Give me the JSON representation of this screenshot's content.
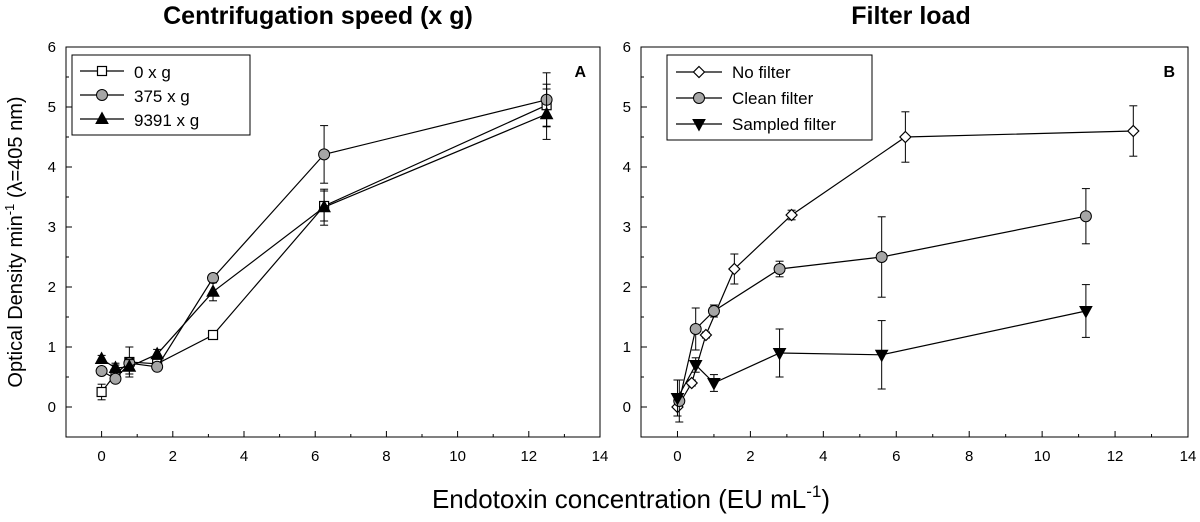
{
  "x_axis_label": "Endotoxin concentration (EU mL",
  "x_axis_label_sup": "-1",
  "x_axis_label_end": ")",
  "y_axis_label": {
    "pre": "Optical Density min",
    "sup": "-1",
    "mid": " (",
    "lambda": "λ",
    "post": "=405 nm)"
  },
  "chart_data": [
    {
      "type": "line",
      "panel": "A",
      "title": "Centrifugation speed (x g)",
      "xlim": [
        -1,
        14
      ],
      "ylim": [
        -0.5,
        6
      ],
      "xticks": [
        "0",
        "2",
        "4",
        "6",
        "8",
        "10",
        "12",
        "14"
      ],
      "yticks": [
        "0",
        "1",
        "2",
        "3",
        "4",
        "5",
        "6"
      ],
      "legend_position": "top-left",
      "series": [
        {
          "name": "0 x g",
          "marker": "square-open",
          "x": [
            0,
            0.39,
            0.78,
            1.56,
            3.13,
            6.25,
            12.5
          ],
          "y": [
            0.25,
            0.55,
            0.75,
            0.72,
            1.2,
            3.35,
            5.03
          ],
          "err": [
            0.13,
            0.15,
            0.25,
            0.12,
            0.02,
            0.25,
            0.35
          ]
        },
        {
          "name": "375 x g",
          "marker": "circle-gray",
          "x": [
            0,
            0.39,
            0.78,
            1.56,
            3.13,
            6.25,
            12.5
          ],
          "y": [
            0.6,
            0.47,
            0.73,
            0.67,
            2.15,
            4.21,
            5.12
          ],
          "err": [
            0.05,
            0.05,
            0.08,
            0.05,
            0.03,
            0.48,
            0.45
          ]
        },
        {
          "name": "9391 x g",
          "marker": "triangle-up-filled",
          "x": [
            0,
            0.39,
            0.78,
            1.56,
            3.13,
            6.25,
            12.5
          ],
          "y": [
            0.8,
            0.65,
            0.67,
            0.88,
            1.92,
            3.33,
            4.88
          ],
          "err": [
            0.06,
            0.08,
            0.12,
            0.08,
            0.15,
            0.3,
            0.42
          ]
        }
      ]
    },
    {
      "type": "line",
      "panel": "B",
      "title": "Filter load",
      "xlim": [
        -1,
        14
      ],
      "ylim": [
        -0.5,
        6
      ],
      "xticks": [
        "0",
        "2",
        "4",
        "6",
        "8",
        "10",
        "12",
        "14"
      ],
      "yticks": [
        "0",
        "1",
        "2",
        "3",
        "4",
        "5",
        "6"
      ],
      "legend_position": "top-left",
      "series": [
        {
          "name": "No filter",
          "marker": "diamond-open",
          "x": [
            0,
            0.39,
            0.78,
            1.56,
            3.13,
            6.25,
            12.5
          ],
          "y": [
            0,
            0.4,
            1.2,
            2.3,
            3.2,
            4.5,
            4.6
          ],
          "err": [
            0.15,
            0.05,
            0.05,
            0.25,
            0.08,
            0.42,
            0.42
          ]
        },
        {
          "name": "Clean filter",
          "marker": "circle-gray",
          "x": [
            0.05,
            0.5,
            1.0,
            2.8,
            5.6,
            11.2
          ],
          "y": [
            0.1,
            1.3,
            1.6,
            2.3,
            2.5,
            3.18
          ],
          "err": [
            0.35,
            0.35,
            0.1,
            0.13,
            0.67,
            0.46
          ]
        },
        {
          "name": "Sampled filter",
          "marker": "triangle-down-filled",
          "x": [
            0,
            0.5,
            1.0,
            2.8,
            5.6,
            11.2
          ],
          "y": [
            0.15,
            0.7,
            0.4,
            0.9,
            0.87,
            1.6
          ],
          "err": [
            0.3,
            0.12,
            0.14,
            0.4,
            0.57,
            0.44
          ]
        }
      ]
    }
  ]
}
